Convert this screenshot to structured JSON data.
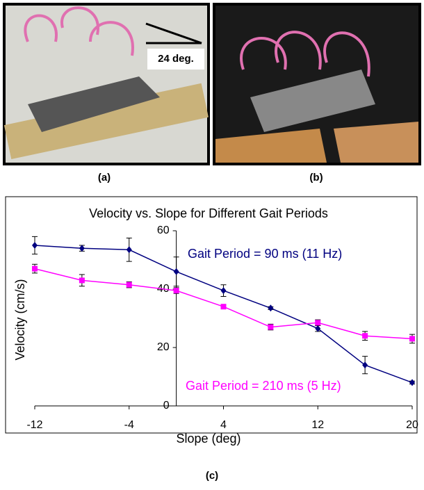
{
  "figure": {
    "panel_a_annotation": "24 deg.",
    "panel_a_label": "(a)",
    "panel_b_label": "(b)",
    "panel_c_label": "(c)"
  },
  "chart_data": {
    "type": "line",
    "title": "Velocity vs. Slope for Different Gait Periods",
    "x_label": "Slope (deg)",
    "y_label": "Velocity (cm/s)",
    "x": [
      -12,
      -8,
      -4,
      0,
      4,
      8,
      12,
      16,
      20
    ],
    "series": [
      {
        "name": "Gait Period = 90 ms (11 Hz)",
        "color": "#000080",
        "marker": "diamond",
        "values": [
          55,
          54,
          53.5,
          46,
          39.5,
          33.5,
          26.5,
          14,
          8
        ],
        "errors": [
          3,
          1,
          4,
          5,
          2,
          0.5,
          1,
          3,
          0.5
        ]
      },
      {
        "name": "Gait Period = 210 ms (5 Hz)",
        "color": "#ff00ff",
        "marker": "square",
        "values": [
          47,
          43,
          41.5,
          39.5,
          34,
          27,
          28.5,
          24,
          23
        ],
        "errors": [
          1.5,
          2,
          1,
          1,
          0.5,
          1,
          1,
          1.5,
          1.5
        ]
      }
    ],
    "xlim": [
      -12,
      20
    ],
    "xticks": [
      -12,
      -4,
      4,
      12,
      20
    ],
    "ylim": [
      0,
      60
    ],
    "yticks": [
      0,
      20,
      40,
      60
    ],
    "grid": false
  }
}
